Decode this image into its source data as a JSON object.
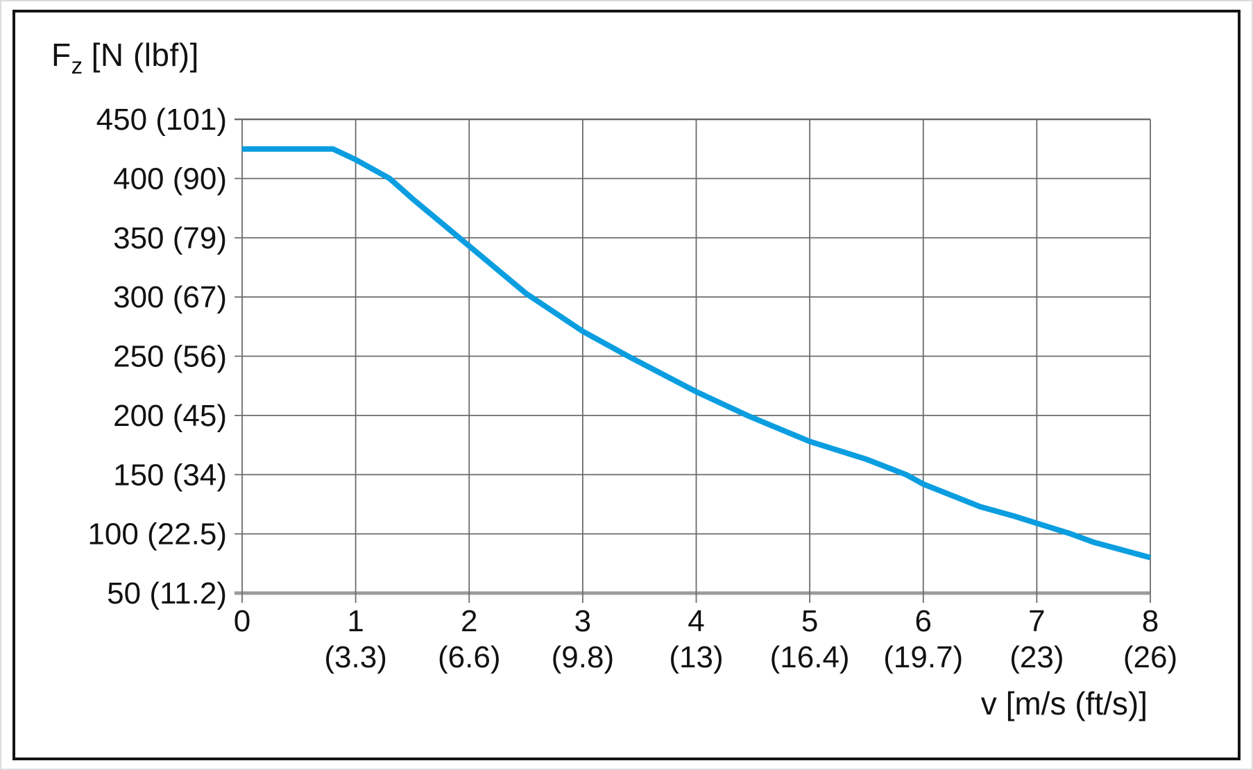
{
  "chart_data": {
    "type": "line",
    "title": "",
    "ylabel_symbol": "F",
    "ylabel_subscript": "z",
    "ylabel_units": "[N (lbf)]",
    "xlabel": "v [m/s (ft/s)]",
    "xlim": [
      0,
      8
    ],
    "ylim": [
      50,
      450
    ],
    "grid": true,
    "legend": "none",
    "x_ticks": [
      {
        "value": 0,
        "label": "0",
        "sublabel": ""
      },
      {
        "value": 1,
        "label": "1",
        "sublabel": "(3.3)"
      },
      {
        "value": 2,
        "label": "2",
        "sublabel": "(6.6)"
      },
      {
        "value": 3,
        "label": "3",
        "sublabel": "(9.8)"
      },
      {
        "value": 4,
        "label": "4",
        "sublabel": "(13)"
      },
      {
        "value": 5,
        "label": "5",
        "sublabel": "(16.4)"
      },
      {
        "value": 6,
        "label": "6",
        "sublabel": "(19.7)"
      },
      {
        "value": 7,
        "label": "7",
        "sublabel": "(23)"
      },
      {
        "value": 8,
        "label": "8",
        "sublabel": "(26)"
      }
    ],
    "y_ticks": [
      {
        "value": 450,
        "label": "450 (101)"
      },
      {
        "value": 400,
        "label": "400 (90)"
      },
      {
        "value": 350,
        "label": "350 (79)"
      },
      {
        "value": 300,
        "label": "300 (67)"
      },
      {
        "value": 250,
        "label": "250 (56)"
      },
      {
        "value": 200,
        "label": "200 (45)"
      },
      {
        "value": 150,
        "label": "150 (34)"
      },
      {
        "value": 100,
        "label": "100 (22.5)"
      },
      {
        "value": 50,
        "label": "50 (11.2)"
      }
    ],
    "series": [
      {
        "name": "permissible-force-vs-speed",
        "color": "#0A9EE0",
        "points": [
          [
            0,
            425
          ],
          [
            0.8,
            425
          ],
          [
            1,
            416
          ],
          [
            1.3,
            400
          ],
          [
            1.5,
            383
          ],
          [
            2,
            343
          ],
          [
            2.5,
            303
          ],
          [
            3,
            271
          ],
          [
            3.4,
            250
          ],
          [
            4,
            220
          ],
          [
            4.45,
            200
          ],
          [
            4.8,
            186
          ],
          [
            5,
            178
          ],
          [
            5.5,
            163
          ],
          [
            5.85,
            150
          ],
          [
            6,
            142
          ],
          [
            6.5,
            123
          ],
          [
            6.8,
            115
          ],
          [
            7,
            109
          ],
          [
            7.3,
            100
          ],
          [
            7.5,
            93
          ],
          [
            8,
            80
          ]
        ]
      }
    ]
  },
  "style": {
    "grid_color": "#6b6b6b",
    "axis_color": "#9b9b9b",
    "text_color": "#111111",
    "frame_color": "#141414",
    "background": "#ffffff",
    "curve_color": "#0A9EE0"
  }
}
